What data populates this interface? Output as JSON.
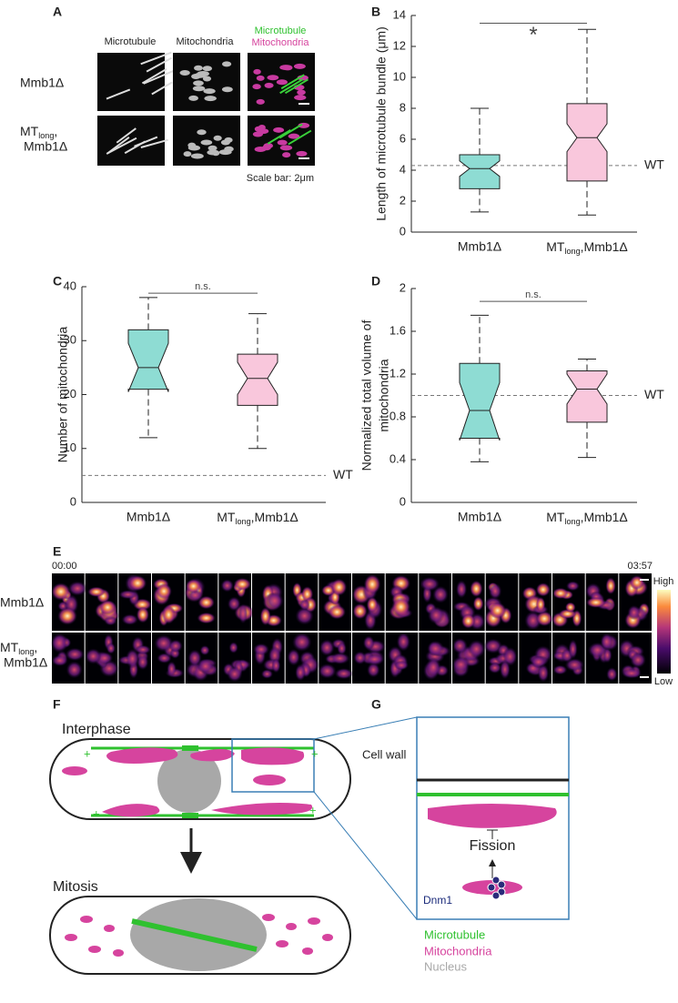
{
  "panel_labels": [
    "A",
    "B",
    "C",
    "D",
    "E",
    "F",
    "G"
  ],
  "panel_a": {
    "column_headers": [
      "Microtubule",
      "Mitochondria"
    ],
    "merge_header": [
      "Microtubule",
      "Mitochondria"
    ],
    "row_labels": [
      "Mmb1Δ",
      [
        "MT",
        "long",
        ",",
        "Mmb1Δ"
      ]
    ],
    "scale_bar": "Scale bar: 2μm"
  },
  "chart_data": [
    {
      "type": "box",
      "ylabel": "Length of microtubule bundle (μm)",
      "categories": [
        "Mmb1Δ",
        [
          "MT",
          "long",
          ",Mmb1Δ"
        ]
      ],
      "boxes": [
        {
          "color": "#8edcd3",
          "whisker_low": 1.3,
          "q1": 2.8,
          "median": 4.1,
          "q3": 5.0,
          "whisker_high": 8.0,
          "notch_low": 3.6,
          "notch_high": 4.6
        },
        {
          "color": "#f9c7dc",
          "whisker_low": 1.1,
          "q1": 3.3,
          "median": 6.1,
          "q3": 8.3,
          "whisker_high": 13.1,
          "notch_low": 5.2,
          "notch_high": 7.0
        }
      ],
      "ylim": [
        0,
        14
      ],
      "yticks": [
        0,
        2,
        4,
        6,
        8,
        10,
        12,
        14
      ],
      "reference": {
        "value": 4.3,
        "label": "WT"
      },
      "significance": {
        "value": 13.5,
        "label": "*"
      }
    },
    {
      "type": "box",
      "ylabel": "Number of mitochondria",
      "categories": [
        "Mmb1Δ",
        [
          "MT",
          "long",
          ",Mmb1Δ"
        ]
      ],
      "boxes": [
        {
          "color": "#8edcd3",
          "whisker_low": 12,
          "q1": 21,
          "median": 25,
          "q3": 32,
          "whisker_high": 38,
          "notch_low": 20.5,
          "notch_high": 29.5
        },
        {
          "color": "#f9c7dc",
          "whisker_low": 10,
          "q1": 18,
          "median": 23,
          "q3": 27.5,
          "whisker_high": 35,
          "notch_low": 20,
          "notch_high": 26
        }
      ],
      "ylim": [
        0,
        40
      ],
      "yticks": [
        0,
        10,
        20,
        30,
        40
      ],
      "reference": {
        "value": 5,
        "label": "WT"
      },
      "significance": {
        "value": 38.8,
        "label": "n.s."
      }
    },
    {
      "type": "box",
      "ylabel": [
        "Normalized total volume of",
        "mitochondria"
      ],
      "categories": [
        "Mmb1Δ",
        [
          "MT",
          "long",
          ",Mmb1Δ"
        ]
      ],
      "boxes": [
        {
          "color": "#8edcd3",
          "whisker_low": 0.38,
          "q1": 0.6,
          "median": 0.86,
          "q3": 1.3,
          "whisker_high": 1.75,
          "notch_low": 0.58,
          "notch_high": 1.12
        },
        {
          "color": "#f9c7dc",
          "whisker_low": 0.42,
          "q1": 0.75,
          "median": 1.06,
          "q3": 1.23,
          "whisker_high": 1.34,
          "notch_low": 0.92,
          "notch_high": 1.2
        }
      ],
      "ylim": [
        0,
        2
      ],
      "yticks": [
        0,
        0.4,
        0.8,
        1.2,
        1.6,
        2
      ],
      "reference": {
        "value": 1.0,
        "label": "WT"
      },
      "significance": {
        "value": 1.88,
        "label": "n.s."
      }
    }
  ],
  "panel_e": {
    "time_start": "00:00",
    "time_end": "03:57",
    "row_labels": [
      "Mmb1Δ",
      [
        "MT",
        "long",
        ",",
        "Mmb1Δ"
      ]
    ],
    "colorbar_high": "High",
    "colorbar_low": "Low"
  },
  "panel_f": {
    "interphase": "Interphase",
    "mitosis": "Mitosis",
    "plus": "+"
  },
  "panel_g": {
    "cell_wall": "Cell wall",
    "fission": "Fission",
    "dnm1": "Dnm1",
    "legend": [
      "Microtubule",
      "Mitochondria",
      "Nucleus"
    ]
  }
}
